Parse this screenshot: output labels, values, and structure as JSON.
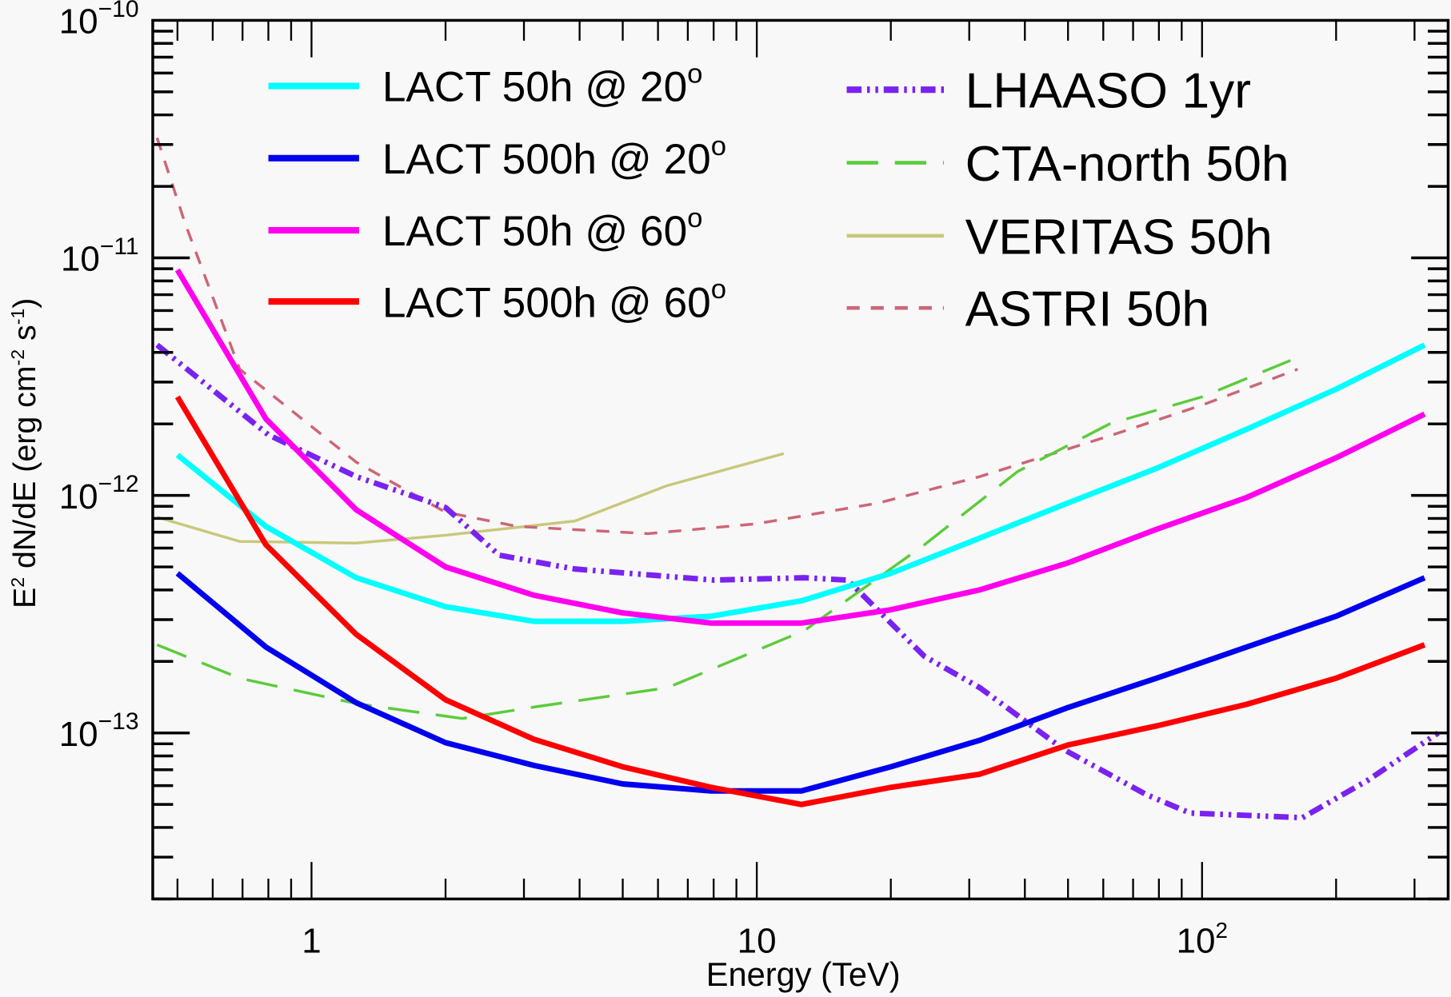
{
  "chart_data": {
    "type": "line",
    "title": "",
    "xlabel": "Energy (TeV)",
    "ylabel_parts": [
      "E",
      "2",
      " dN/dE (erg cm",
      "-2",
      " s",
      "-1",
      ")"
    ],
    "xscale": "log",
    "yscale": "log",
    "xlim": [
      0.44,
      357
    ],
    "ylim": [
      2e-14,
      1e-10
    ],
    "grid": false,
    "legend_placement": "top (two columns)",
    "x_ticks": [
      {
        "value": 1,
        "base": "1",
        "exp": ""
      },
      {
        "value": 10,
        "base": "10",
        "exp": ""
      },
      {
        "value": 100,
        "base": "10",
        "exp": "2"
      }
    ],
    "y_ticks": [
      {
        "value": 1e-10,
        "base": "10",
        "exp": "−10"
      },
      {
        "value": 1e-11,
        "base": "10",
        "exp": "−11"
      },
      {
        "value": 1e-12,
        "base": "10",
        "exp": "−12"
      },
      {
        "value": 1e-13,
        "base": "10",
        "exp": "−13"
      }
    ],
    "series": [
      {
        "name": "LACT 50h @ 20",
        "sup": "o",
        "color": "#00ffff",
        "style": "solid",
        "width": 6,
        "legend_col": 0,
        "x": [
          0.5,
          0.79,
          1.26,
          2,
          3.16,
          5,
          7.9,
          12.6,
          20,
          31.6,
          50,
          79,
          126,
          200,
          316
        ],
        "y": [
          1.48e-12,
          7.4e-13,
          4.5e-13,
          3.4e-13,
          2.95e-13,
          2.95e-13,
          3.1e-13,
          3.6e-13,
          4.7e-13,
          6.6e-13,
          9.3e-13,
          1.3e-12,
          1.9e-12,
          2.8e-12,
          4.3e-12
        ]
      },
      {
        "name": "LACT 500h @ 20",
        "sup": "o",
        "color": "#0000ee",
        "style": "solid",
        "width": 6,
        "legend_col": 0,
        "x": [
          0.5,
          0.79,
          1.26,
          2,
          3.16,
          5,
          7.9,
          12.6,
          20,
          31.6,
          50,
          79,
          126,
          200,
          316
        ],
        "y": [
          4.7e-13,
          2.3e-13,
          1.34e-13,
          9.1e-14,
          7.3e-14,
          6.1e-14,
          5.7e-14,
          5.7e-14,
          7.2e-14,
          9.3e-14,
          1.28e-13,
          1.7e-13,
          2.3e-13,
          3.1e-13,
          4.5e-13
        ]
      },
      {
        "name": "LACT 50h @ 60",
        "sup": "o",
        "color": "#ff00ee",
        "style": "solid",
        "width": 6,
        "legend_col": 0,
        "x": [
          0.5,
          0.79,
          1.26,
          2,
          3.16,
          5,
          7.9,
          12.6,
          20,
          31.6,
          50,
          79,
          126,
          200,
          316
        ],
        "y": [
          8.9e-12,
          2.1e-12,
          8.7e-13,
          5e-13,
          3.8e-13,
          3.2e-13,
          2.9e-13,
          2.9e-13,
          3.3e-13,
          4e-13,
          5.2e-13,
          7.2e-13,
          9.8e-13,
          1.44e-12,
          2.2e-12
        ]
      },
      {
        "name": "LACT 500h @ 60",
        "sup": "o",
        "color": "#ff0000",
        "style": "solid",
        "width": 6,
        "legend_col": 0,
        "x": [
          0.5,
          0.79,
          1.26,
          2,
          3.16,
          5,
          7.9,
          12.6,
          20,
          31.6,
          50,
          79,
          126,
          200,
          316
        ],
        "y": [
          2.6e-12,
          6.2e-13,
          2.6e-13,
          1.38e-13,
          9.4e-14,
          7.2e-14,
          5.9e-14,
          5e-14,
          5.9e-14,
          6.7e-14,
          8.9e-14,
          1.07e-13,
          1.32e-13,
          1.7e-13,
          2.35e-13
        ]
      },
      {
        "name": "LHAASO 1yr",
        "sup": "",
        "color": "#7a22f0",
        "style": "dashdotdot",
        "width": 6,
        "legend_col": 1,
        "x": [
          0.45,
          0.8,
          1.26,
          2,
          2.64,
          3.9,
          8,
          12.8,
          16,
          23.8,
          31.7,
          49,
          75,
          94,
          168,
          235,
          339
        ],
        "y": [
          4.3e-12,
          1.8e-12,
          1.2e-12,
          8.9e-13,
          5.6e-13,
          4.9e-13,
          4.4e-13,
          4.5e-13,
          4.4e-13,
          2.1e-13,
          1.55e-13,
          8.5e-14,
          5.5e-14,
          4.6e-14,
          4.4e-14,
          6.3e-14,
          1e-13
        ]
      },
      {
        "name": "CTA-north 50h",
        "sup": "",
        "color": "#5ccc3c",
        "style": "longdash",
        "width": 3,
        "legend_col": 1,
        "x": [
          0.45,
          0.69,
          1.26,
          2.18,
          3.2,
          6.3,
          12.8,
          23.8,
          38.5,
          62,
          100,
          158
        ],
        "y": [
          2.35e-13,
          1.7e-13,
          1.33e-13,
          1.15e-13,
          1.29e-13,
          1.55e-13,
          2.7e-13,
          6.2e-13,
          1.26e-12,
          2e-12,
          2.6e-12,
          3.7e-12
        ]
      },
      {
        "name": "VERITAS 50h",
        "sup": "",
        "color": "#c8c87c",
        "style": "solid",
        "width": 3,
        "legend_col": 1,
        "x": [
          0.45,
          0.69,
          1.26,
          2,
          3.9,
          6.3,
          11.5
        ],
        "y": [
          8.1e-13,
          6.4e-13,
          6.3e-13,
          6.8e-13,
          7.8e-13,
          1.1e-12,
          1.5e-12
        ]
      },
      {
        "name": "ASTRI 50h",
        "sup": "",
        "color": "#cc6677",
        "style": "dash",
        "width": 3,
        "legend_col": 1,
        "x": [
          0.45,
          0.52,
          0.69,
          1.26,
          2,
          2.9,
          5.7,
          10,
          18.8,
          31.7,
          62,
          100,
          164
        ],
        "y": [
          3.2e-11,
          1.4e-11,
          3.4e-12,
          1.38e-12,
          8.5e-13,
          7.4e-13,
          6.9e-13,
          7.6e-13,
          9.3e-13,
          1.2e-12,
          1.78e-12,
          2.4e-12,
          3.4e-12
        ]
      }
    ]
  }
}
